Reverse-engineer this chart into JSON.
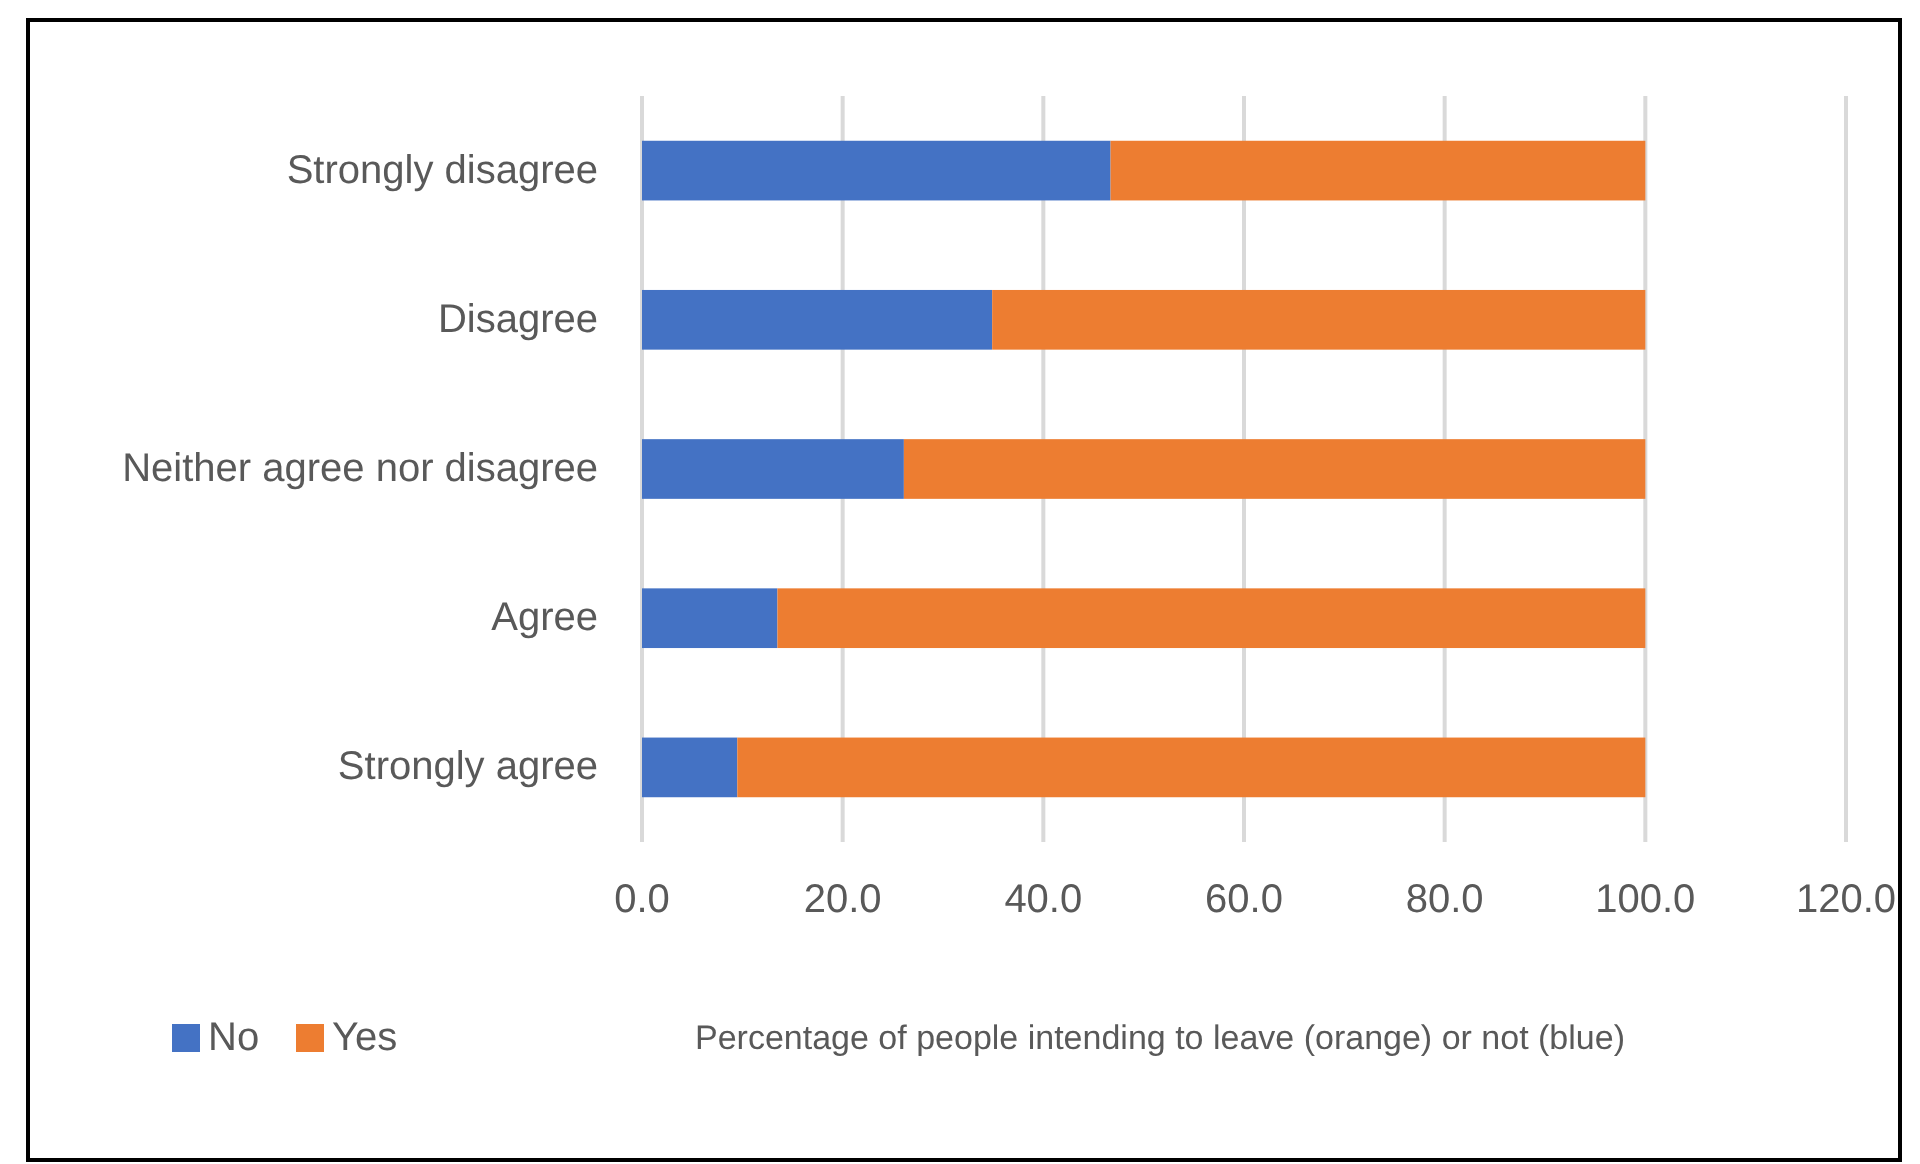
{
  "chart_data": {
    "type": "bar",
    "orientation": "horizontal",
    "stacked": true,
    "categories": [
      "Strongly disagree",
      "Disagree",
      "Neither agree nor disagree",
      "Agree",
      "Strongly agree"
    ],
    "series": [
      {
        "name": "No",
        "color": "#4472c4",
        "values": [
          46.7,
          34.9,
          26.1,
          13.5,
          9.5
        ]
      },
      {
        "name": "Yes",
        "color": "#ed7d31",
        "values": [
          53.3,
          65.1,
          73.9,
          86.5,
          90.5
        ]
      }
    ],
    "xlim": [
      0,
      120
    ],
    "xticks": [
      {
        "value": 0,
        "label": "0.0"
      },
      {
        "value": 20,
        "label": "20.0"
      },
      {
        "value": 40,
        "label": "40.0"
      },
      {
        "value": 60,
        "label": "60.0"
      },
      {
        "value": 80,
        "label": "80.0"
      },
      {
        "value": 100,
        "label": "100.0"
      },
      {
        "value": 120,
        "label": "120.0"
      }
    ],
    "xlabel": "Percentage of people intending to leave (orange) or not (blue)",
    "grid": "x",
    "legend": "bottom left"
  }
}
